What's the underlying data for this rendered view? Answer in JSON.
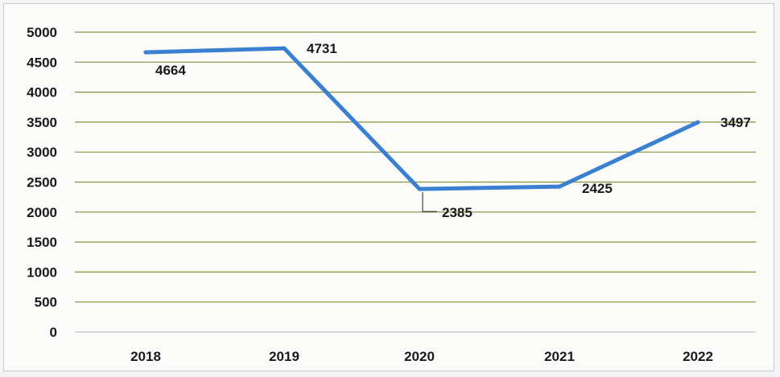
{
  "chart_data": {
    "type": "line",
    "title": "",
    "xlabel": "",
    "ylabel": "",
    "categories": [
      "2018",
      "2019",
      "2020",
      "2021",
      "2022"
    ],
    "series": [
      {
        "values": [
          4664,
          4731,
          2385,
          2425,
          3497
        ],
        "color": "#3a7fd0"
      }
    ],
    "data_labels": [
      "4664",
      "4731",
      "2385",
      "2425",
      "3497"
    ],
    "yticks": [
      "0",
      "500",
      "1000",
      "1500",
      "2000",
      "2500",
      "3000",
      "3500",
      "4000",
      "4500",
      "5000"
    ],
    "ylim": [
      0,
      5000
    ],
    "grid": true,
    "grid_color": "#8a8f3a",
    "legend": "none"
  }
}
